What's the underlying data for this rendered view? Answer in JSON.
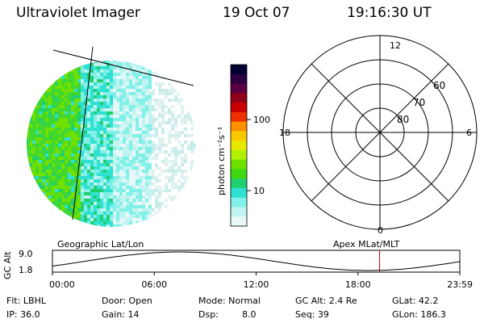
{
  "header": {
    "instrument": "Ultraviolet Imager",
    "date": "19 Oct 07",
    "time": "19:16:30 UT"
  },
  "colorbar": {
    "unit_label": "photon cm⁻²s⁻¹",
    "ticks": [
      "100",
      "10"
    ],
    "stops": [
      "#000030",
      "#2a0040",
      "#5a0040",
      "#900018",
      "#c80000",
      "#ee3000",
      "#ff9000",
      "#f8c800",
      "#e8e800",
      "#b0f000",
      "#70e000",
      "#40d810",
      "#20d070",
      "#30e0d0",
      "#80f0e8",
      "#c0f4f0",
      "#e8f8f8"
    ]
  },
  "polar": {
    "lat_labels": [
      "60",
      "70",
      "80"
    ],
    "mlt_labels": {
      "top": "12",
      "bottom": "0",
      "left": "18",
      "right": "6"
    }
  },
  "timeline": {
    "top_left_label": "Geographic Lat/Lon",
    "top_right_label": "Apex MLat/MLT",
    "axis_label": "GC Alt",
    "y_max": "9.0",
    "y_min": "1.8",
    "time_ticks": [
      "00:00",
      "06:00",
      "12:00",
      "18:00",
      "23:59"
    ],
    "current_time_hours": 19.275
  },
  "status": {
    "flt": "Flt: LBHL",
    "door": "Door: Open",
    "mode": "Mode: Normal",
    "gc_alt": "GC Alt: 2.4 Re",
    "glat": "GLat: 42.2",
    "ip": "IP: 36.0",
    "gain": "Gain: 14",
    "dsp_label": "Dsp:",
    "dsp_value": "8.0",
    "seq": "Seq: 39",
    "glon": "GLon: 186.3"
  }
}
